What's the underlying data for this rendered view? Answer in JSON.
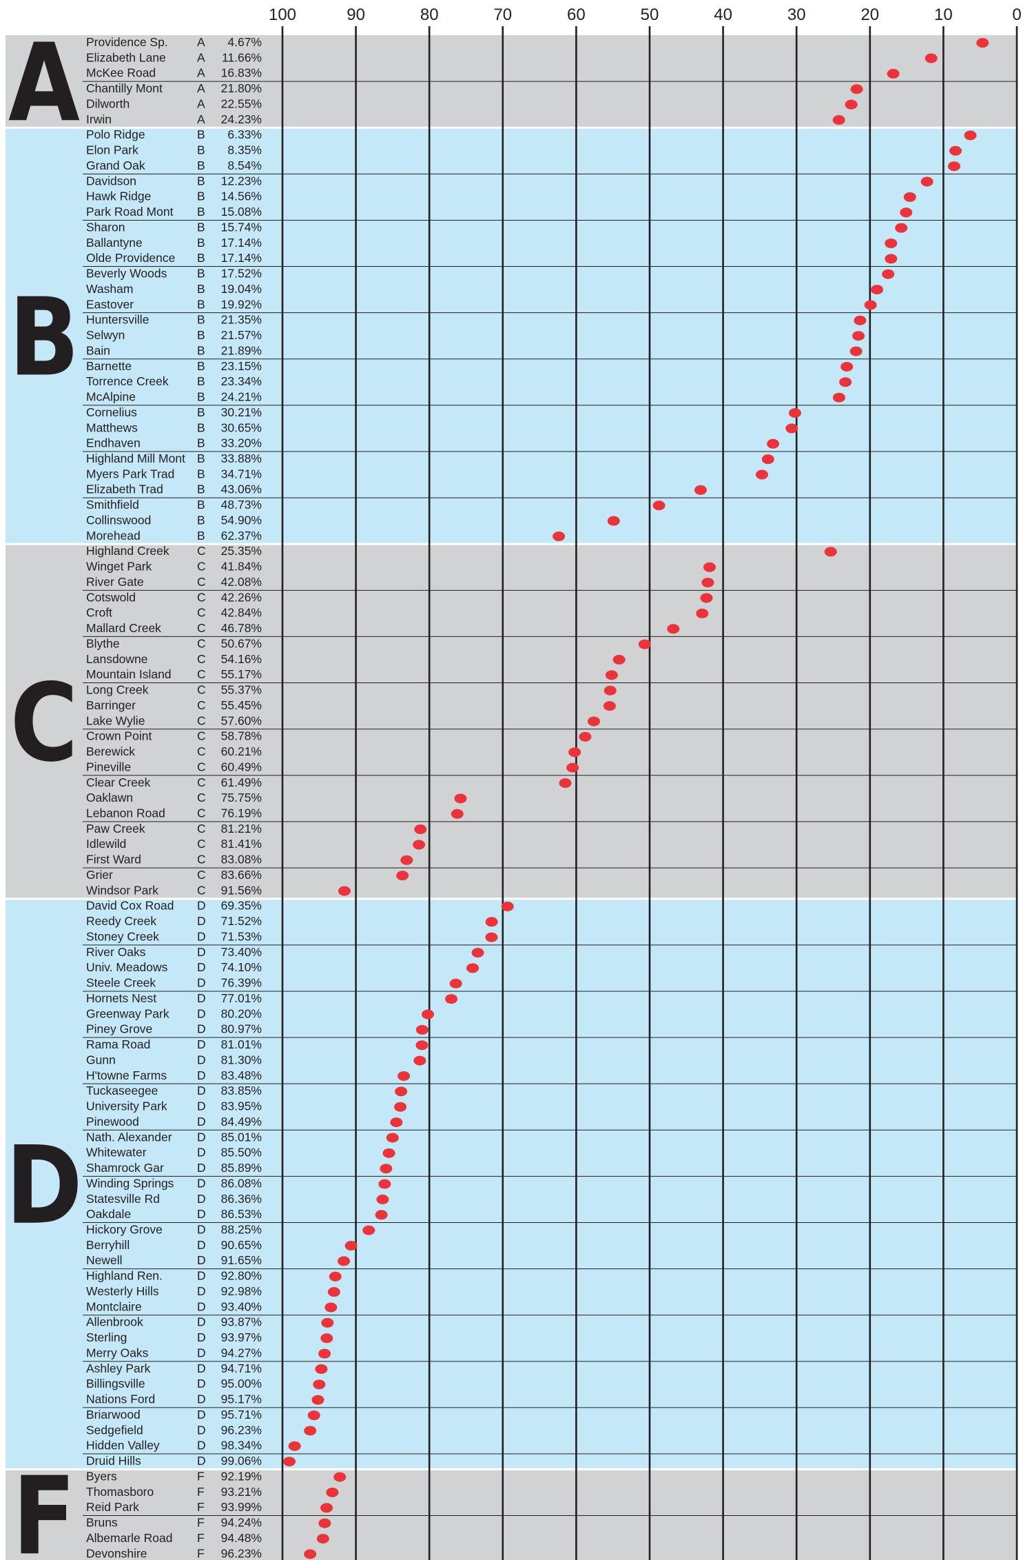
{
  "chart_data": {
    "type": "scatter",
    "x_axis": {
      "ticks": [
        100,
        90,
        80,
        70,
        60,
        50,
        40,
        30,
        20,
        10,
        0
      ],
      "range": [
        100,
        0
      ],
      "reversed": true,
      "grid": true
    },
    "colors": {
      "band_gray": "#d1d2d4",
      "band_blue": "#c5e8f8",
      "marker": "#e8343a",
      "rule": "#231f20",
      "text": "#231f20"
    },
    "groups": [
      {
        "letter": "A",
        "band": "gray",
        "rows": [
          {
            "name": "Providence Sp.",
            "grade": "A",
            "label": "4.67%",
            "value": 4.67
          },
          {
            "name": "Elizabeth Lane",
            "grade": "A",
            "label": "11.66%",
            "value": 11.66
          },
          {
            "name": "McKee Road",
            "grade": "A",
            "label": "16.83%",
            "value": 16.83
          },
          {
            "name": "Chantilly Mont",
            "grade": "A",
            "label": "21.80%",
            "value": 21.8
          },
          {
            "name": "Dilworth",
            "grade": "A",
            "label": "22.55%",
            "value": 22.55
          },
          {
            "name": "Irwin",
            "grade": "A",
            "label": "24.23%",
            "value": 24.23
          }
        ]
      },
      {
        "letter": "B",
        "band": "blue",
        "rows": [
          {
            "name": "Polo Ridge",
            "grade": "B",
            "label": "6.33%",
            "value": 6.33
          },
          {
            "name": "Elon Park",
            "grade": "B",
            "label": "8.35%",
            "value": 8.35
          },
          {
            "name": "Grand Oak",
            "grade": "B",
            "label": "8.54%",
            "value": 8.54
          },
          {
            "name": "Davidson",
            "grade": "B",
            "label": "12.23%",
            "value": 12.23
          },
          {
            "name": "Hawk Ridge",
            "grade": "B",
            "label": "14.56%",
            "value": 14.56
          },
          {
            "name": "Park Road Mont",
            "grade": "B",
            "label": "15.08%",
            "value": 15.08
          },
          {
            "name": "Sharon",
            "grade": "B",
            "label": "15.74%",
            "value": 15.74
          },
          {
            "name": "Ballantyne",
            "grade": "B",
            "label": "17.14%",
            "value": 17.14
          },
          {
            "name": "Olde Providence",
            "grade": "B",
            "label": "17.14%",
            "value": 17.14
          },
          {
            "name": "Beverly Woods",
            "grade": "B",
            "label": "17.52%",
            "value": 17.52
          },
          {
            "name": "Washam",
            "grade": "B",
            "label": "19.04%",
            "value": 19.04
          },
          {
            "name": "Eastover",
            "grade": "B",
            "label": "19.92%",
            "value": 19.92
          },
          {
            "name": "Huntersville",
            "grade": "B",
            "label": "21.35%",
            "value": 21.35
          },
          {
            "name": "Selwyn",
            "grade": "B",
            "label": "21.57%",
            "value": 21.57
          },
          {
            "name": "Bain",
            "grade": "B",
            "label": "21.89%",
            "value": 21.89
          },
          {
            "name": "Barnette",
            "grade": "B",
            "label": "23.15%",
            "value": 23.15
          },
          {
            "name": "Torrence Creek",
            "grade": "B",
            "label": "23.34%",
            "value": 23.34
          },
          {
            "name": "McAlpine",
            "grade": "B",
            "label": "24.21%",
            "value": 24.21
          },
          {
            "name": "Cornelius",
            "grade": "B",
            "label": "30.21%",
            "value": 30.21
          },
          {
            "name": "Matthews",
            "grade": "B",
            "label": "30.65%",
            "value": 30.65
          },
          {
            "name": "Endhaven",
            "grade": "B",
            "label": "33.20%",
            "value": 33.2
          },
          {
            "name": "Highland Mill Mont",
            "grade": "B",
            "label": "33.88%",
            "value": 33.88
          },
          {
            "name": "Myers Park Trad",
            "grade": "B",
            "label": "34.71%",
            "value": 34.71
          },
          {
            "name": "Elizabeth Trad",
            "grade": "B",
            "label": "43.06%",
            "value": 43.06
          },
          {
            "name": "Smithfield",
            "grade": "B",
            "label": "48.73%",
            "value": 48.73
          },
          {
            "name": "Collinswood",
            "grade": "B",
            "label": "54.90%",
            "value": 54.9
          },
          {
            "name": "Morehead",
            "grade": "B",
            "label": "62.37%",
            "value": 62.37
          }
        ]
      },
      {
        "letter": "C",
        "band": "gray",
        "rows": [
          {
            "name": "Highland Creek",
            "grade": "C",
            "label": "25.35%",
            "value": 25.35
          },
          {
            "name": "Winget Park",
            "grade": "C",
            "label": "41.84%",
            "value": 41.84
          },
          {
            "name": "River Gate",
            "grade": "C",
            "label": "42.08%",
            "value": 42.08
          },
          {
            "name": "Cotswold",
            "grade": "C",
            "label": "42.26%",
            "value": 42.26
          },
          {
            "name": "Croft",
            "grade": "C",
            "label": "42.84%",
            "value": 42.84
          },
          {
            "name": "Mallard Creek",
            "grade": "C",
            "label": "46.78%",
            "value": 46.78
          },
          {
            "name": "Blythe",
            "grade": "C",
            "label": "50.67%",
            "value": 50.67
          },
          {
            "name": "Lansdowne",
            "grade": "C",
            "label": "54.16%",
            "value": 54.16
          },
          {
            "name": "Mountain Island",
            "grade": "C",
            "label": "55.17%",
            "value": 55.17
          },
          {
            "name": "Long Creek",
            "grade": "C",
            "label": "55.37%",
            "value": 55.37
          },
          {
            "name": "Barringer",
            "grade": "C",
            "label": "55.45%",
            "value": 55.45
          },
          {
            "name": "Lake Wylie",
            "grade": "C",
            "label": "57.60%",
            "value": 57.6
          },
          {
            "name": "Crown Point",
            "grade": "C",
            "label": "58.78%",
            "value": 58.78
          },
          {
            "name": "Berewick",
            "grade": "C",
            "label": "60.21%",
            "value": 60.21
          },
          {
            "name": "Pineville",
            "grade": "C",
            "label": "60.49%",
            "value": 60.49
          },
          {
            "name": "Clear Creek",
            "grade": "C",
            "label": "61.49%",
            "value": 61.49
          },
          {
            "name": "Oaklawn",
            "grade": "C",
            "label": "75.75%",
            "value": 75.75
          },
          {
            "name": "Lebanon Road",
            "grade": "C",
            "label": "76.19%",
            "value": 76.19
          },
          {
            "name": "Paw Creek",
            "grade": "C",
            "label": "81.21%",
            "value": 81.21
          },
          {
            "name": "Idlewild",
            "grade": "C",
            "label": "81.41%",
            "value": 81.41
          },
          {
            "name": "First Ward",
            "grade": "C",
            "label": "83.08%",
            "value": 83.08
          },
          {
            "name": "Grier",
            "grade": "C",
            "label": "83.66%",
            "value": 83.66
          },
          {
            "name": "Windsor Park",
            "grade": "C",
            "label": "91.56%",
            "value": 91.56
          }
        ]
      },
      {
        "letter": "D",
        "band": "blue",
        "rows": [
          {
            "name": "David Cox Road",
            "grade": "D",
            "label": "69.35%",
            "value": 69.35
          },
          {
            "name": "Reedy Creek",
            "grade": "D",
            "label": "71.52%",
            "value": 71.52
          },
          {
            "name": "Stoney Creek",
            "grade": "D",
            "label": "71.53%",
            "value": 71.53
          },
          {
            "name": "River Oaks",
            "grade": "D",
            "label": "73.40%",
            "value": 73.4
          },
          {
            "name": "Univ. Meadows",
            "grade": "D",
            "label": "74.10%",
            "value": 74.1
          },
          {
            "name": "Steele Creek",
            "grade": "D",
            "label": "76.39%",
            "value": 76.39
          },
          {
            "name": "Hornets Nest",
            "grade": "D",
            "label": "77.01%",
            "value": 77.01
          },
          {
            "name": "Greenway Park",
            "grade": "D",
            "label": "80.20%",
            "value": 80.2
          },
          {
            "name": "Piney Grove",
            "grade": "D",
            "label": "80.97%",
            "value": 80.97
          },
          {
            "name": "Rama Road",
            "grade": "D",
            "label": "81.01%",
            "value": 81.01
          },
          {
            "name": "Gunn",
            "grade": "D",
            "label": "81.30%",
            "value": 81.3
          },
          {
            "name": "H'towne Farms",
            "grade": "D",
            "label": "83.48%",
            "value": 83.48
          },
          {
            "name": "Tuckaseegee",
            "grade": "D",
            "label": "83.85%",
            "value": 83.85
          },
          {
            "name": "University Park",
            "grade": "D",
            "label": "83.95%",
            "value": 83.95
          },
          {
            "name": "Pinewood",
            "grade": "D",
            "label": "84.49%",
            "value": 84.49
          },
          {
            "name": "Nath. Alexander",
            "grade": "D",
            "label": "85.01%",
            "value": 85.01
          },
          {
            "name": "Whitewater",
            "grade": "D",
            "label": "85.50%",
            "value": 85.5
          },
          {
            "name": "Shamrock Gar",
            "grade": "D",
            "label": "85.89%",
            "value": 85.89
          },
          {
            "name": "Winding Springs",
            "grade": "D",
            "label": "86.08%",
            "value": 86.08
          },
          {
            "name": "Statesville Rd",
            "grade": "D",
            "label": "86.36%",
            "value": 86.36
          },
          {
            "name": "Oakdale",
            "grade": "D",
            "label": "86.53%",
            "value": 86.53
          },
          {
            "name": "Hickory Grove",
            "grade": "D",
            "label": "88.25%",
            "value": 88.25
          },
          {
            "name": "Berryhill",
            "grade": "D",
            "label": "90.65%",
            "value": 90.65
          },
          {
            "name": "Newell",
            "grade": "D",
            "label": "91.65%",
            "value": 91.65
          },
          {
            "name": "Highland Ren.",
            "grade": "D",
            "label": "92.80%",
            "value": 92.8
          },
          {
            "name": "Westerly Hills",
            "grade": "D",
            "label": "92.98%",
            "value": 92.98
          },
          {
            "name": "Montclaire",
            "grade": "D",
            "label": "93.40%",
            "value": 93.4
          },
          {
            "name": "Allenbrook",
            "grade": "D",
            "label": "93.87%",
            "value": 93.87
          },
          {
            "name": "Sterling",
            "grade": "D",
            "label": "93.97%",
            "value": 93.97
          },
          {
            "name": "Merry Oaks",
            "grade": "D",
            "label": "94.27%",
            "value": 94.27
          },
          {
            "name": "Ashley Park",
            "grade": "D",
            "label": "94.71%",
            "value": 94.71
          },
          {
            "name": "Billingsville",
            "grade": "D",
            "label": "95.00%",
            "value": 95.0
          },
          {
            "name": "Nations Ford",
            "grade": "D",
            "label": "95.17%",
            "value": 95.17
          },
          {
            "name": "Briarwood",
            "grade": "D",
            "label": "95.71%",
            "value": 95.71
          },
          {
            "name": "Sedgefield",
            "grade": "D",
            "label": "96.23%",
            "value": 96.23
          },
          {
            "name": "Hidden Valley",
            "grade": "D",
            "label": "98.34%",
            "value": 98.34
          },
          {
            "name": "Druid Hills",
            "grade": "D",
            "label": "99.06%",
            "value": 99.06
          }
        ]
      },
      {
        "letter": "F",
        "band": "gray",
        "rows": [
          {
            "name": "Byers",
            "grade": "F",
            "label": "92.19%",
            "value": 92.19
          },
          {
            "name": "Thomasboro",
            "grade": "F",
            "label": "93.21%",
            "value": 93.21
          },
          {
            "name": "Reid Park",
            "grade": "F",
            "label": "93.99%",
            "value": 93.99
          },
          {
            "name": "Bruns",
            "grade": "F",
            "label": "94.24%",
            "value": 94.24
          },
          {
            "name": "Albemarle Road",
            "grade": "F",
            "label": "94.48%",
            "value": 94.48
          },
          {
            "name": "Devonshire",
            "grade": "F",
            "label": "96.23%",
            "value": 96.23
          }
        ]
      }
    ]
  }
}
